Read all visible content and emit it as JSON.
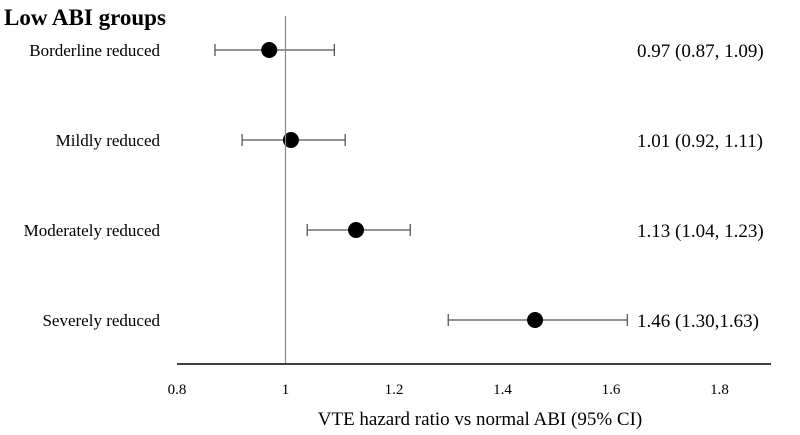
{
  "chart_data": {
    "type": "forest",
    "group_title": "Low ABI groups",
    "xlabel": "VTE hazard ratio vs normal ABI (95% CI)",
    "xlim": [
      0.8,
      1.9
    ],
    "xticks": [
      0.8,
      1,
      1.2,
      1.4,
      1.6,
      1.8
    ],
    "xtick_labels": [
      "0.8",
      "1",
      "1.2",
      "1.4",
      "1.6",
      "1.8"
    ],
    "reference_line": 1,
    "rows": [
      {
        "label": "Borderline reduced",
        "hr": 0.97,
        "lower": 0.87,
        "upper": 1.09,
        "text": "0.97 (0.87, 1.09)"
      },
      {
        "label": "Mildly reduced",
        "hr": 1.01,
        "lower": 0.92,
        "upper": 1.11,
        "text": "1.01 (0.92, 1.11)"
      },
      {
        "label": "Moderately reduced",
        "hr": 1.13,
        "lower": 1.04,
        "upper": 1.23,
        "text": "1.13 (1.04, 1.23)"
      },
      {
        "label": "Severely reduced",
        "hr": 1.46,
        "lower": 1.3,
        "upper": 1.63,
        "text": "1.46 (1.30,1.63)"
      }
    ],
    "colors": {
      "marker": "#000000",
      "ci_line": "#555555",
      "reference": "#8a8a8a",
      "axis": "#000000"
    }
  }
}
